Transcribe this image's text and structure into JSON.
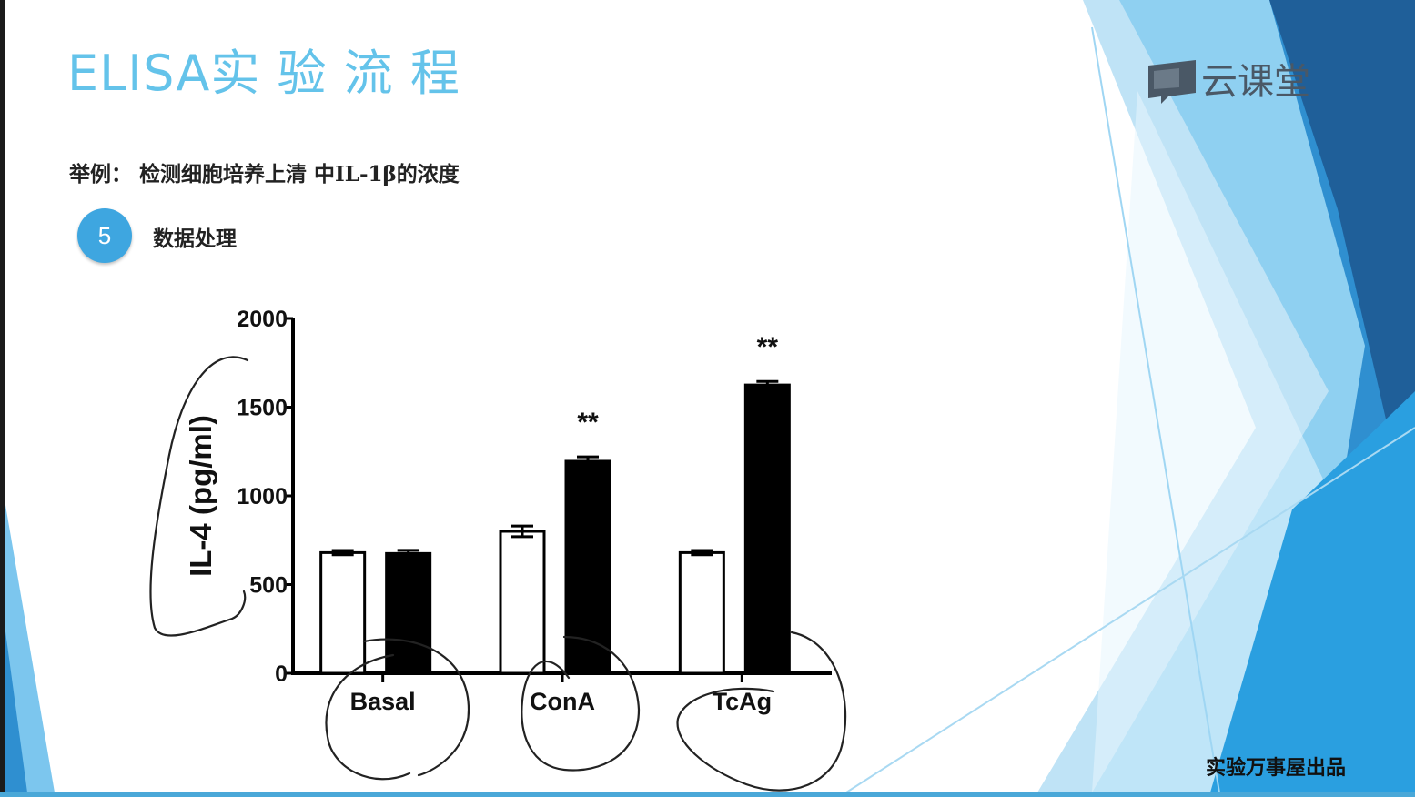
{
  "slide": {
    "title": "ELISA实 验 流 程",
    "subtitle": "举例：  检测细胞培养上清 中IL-1β的浓度",
    "step_number": "5",
    "step_label": "数据处理",
    "logo_text": "云课堂",
    "footer": "实验万事屋出品",
    "colors": {
      "title": "#64c3ea",
      "step_circle": "#3ea6e0",
      "decor_dark_blue": "#1f5f99",
      "decor_mid_blue": "#2f8fd0",
      "decor_light_blue": "#7cc6ee"
    }
  },
  "chart_data": {
    "type": "bar",
    "title": "",
    "xlabel": "",
    "ylabel": "IL-4 (pg/ml)",
    "ylim": [
      0,
      2000
    ],
    "yticks": [
      0,
      500,
      1000,
      1500,
      2000
    ],
    "categories": [
      "Basal",
      "ConA",
      "TcAg"
    ],
    "series": [
      {
        "fill": "#ffffff",
        "values": [
          680,
          800,
          680
        ],
        "errors": [
          12,
          30,
          12
        ]
      },
      {
        "fill": "#000000",
        "values": [
          675,
          1195,
          1625
        ],
        "errors": [
          18,
          25,
          20
        ]
      }
    ],
    "significance": [
      "",
      "**",
      "**"
    ],
    "grid": false,
    "legend": "none"
  }
}
